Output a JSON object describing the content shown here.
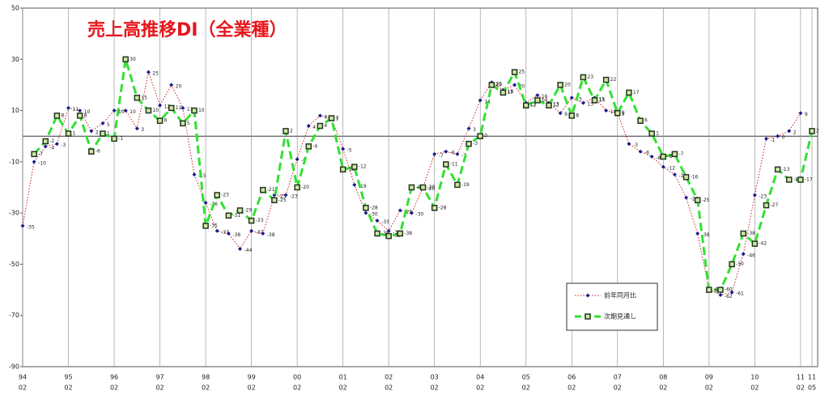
{
  "chart_data": {
    "type": "line",
    "title": "売上高推移DI（全業種）",
    "categories": [
      [
        "94",
        "02"
      ],
      null,
      null,
      null,
      [
        "95",
        "02"
      ],
      null,
      null,
      null,
      [
        "96",
        "02"
      ],
      null,
      null,
      null,
      [
        "97",
        "02"
      ],
      null,
      null,
      null,
      [
        "98",
        "02"
      ],
      null,
      null,
      null,
      [
        "99",
        "02"
      ],
      null,
      null,
      null,
      [
        "00",
        "02"
      ],
      null,
      null,
      null,
      [
        "01",
        "02"
      ],
      null,
      null,
      null,
      [
        "02",
        "02"
      ],
      null,
      null,
      null,
      [
        "03",
        "02"
      ],
      null,
      null,
      null,
      [
        "04",
        "02"
      ],
      null,
      null,
      null,
      [
        "05",
        "02"
      ],
      null,
      null,
      null,
      [
        "06",
        "02"
      ],
      null,
      null,
      null,
      [
        "07",
        "02"
      ],
      null,
      null,
      null,
      [
        "08",
        "02"
      ],
      null,
      null,
      null,
      [
        "09",
        "02"
      ],
      null,
      null,
      null,
      [
        "10",
        "02"
      ],
      null,
      null,
      null,
      [
        "11",
        "02"
      ],
      [
        "11",
        "05"
      ]
    ],
    "series": [
      {
        "name": "前年同月比",
        "color": "#cc2222",
        "marker_color": "#1a1a8c",
        "line_style": "dotted",
        "marker": "diamond",
        "values": [
          -35,
          -10,
          -4,
          -3,
          11,
          10,
          2,
          5,
          10,
          10,
          3,
          25,
          12,
          20,
          11,
          -15,
          -26,
          -37,
          -38,
          -44,
          -37,
          -38,
          -23,
          -23,
          -9,
          4,
          8,
          7,
          -5,
          -19,
          -30,
          -33,
          -37,
          -29,
          -30,
          -20,
          -7,
          -6,
          -7,
          3,
          14,
          21,
          18,
          20,
          13,
          16,
          13,
          9,
          15,
          13,
          15,
          10,
          9,
          -3,
          -6,
          -8,
          -12,
          -15,
          -24,
          -38,
          -60,
          -62,
          -61,
          -46,
          -23,
          -1,
          0,
          2,
          9,
          null
        ]
      },
      {
        "name": "次期見通し",
        "color": "#33e033",
        "marker_color": "#223322",
        "line_style": "dashed",
        "marker": "square",
        "values": [
          null,
          -7,
          -2,
          8,
          1,
          8,
          -6,
          1,
          -1,
          30,
          15,
          10,
          6,
          11,
          5,
          10,
          -35,
          -23,
          -31,
          -29,
          -33,
          -21,
          -25,
          2,
          -20,
          -4,
          4,
          7,
          -13,
          -12,
          -28,
          -38,
          -39,
          -38,
          -20,
          -20,
          -28,
          -11,
          -19,
          -3,
          0,
          20,
          17,
          25,
          12,
          14,
          12,
          20,
          8,
          23,
          14,
          22,
          9,
          17,
          6,
          1,
          -8,
          -7,
          -16,
          -25,
          -60,
          -60,
          -50,
          -38,
          -42,
          -27,
          -13,
          -17,
          -17,
          2
        ]
      }
    ],
    "ylim": [
      -90,
      50
    ],
    "yticks": [
      50,
      30,
      10,
      -10,
      -30,
      -50,
      -70,
      -90
    ],
    "zero_line": true,
    "grid": "x"
  }
}
